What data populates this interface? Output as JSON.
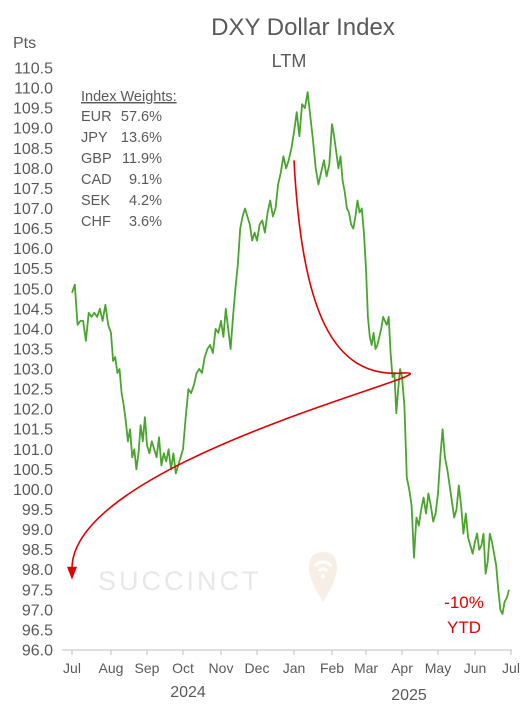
{
  "chart_data": {
    "type": "line",
    "title": "DXY Dollar Index",
    "subtitle": "LTM",
    "ylabel": "Pts",
    "xlabel": "",
    "ylim": [
      96.0,
      110.5
    ],
    "y_ticks": [
      "110.5",
      "110.0",
      "109.5",
      "109.0",
      "108.5",
      "108.0",
      "107.5",
      "107.0",
      "106.5",
      "106.0",
      "105.5",
      "105.0",
      "104.5",
      "104.0",
      "103.5",
      "103.0",
      "102.5",
      "102.0",
      "101.5",
      "101.0",
      "100.5",
      "100.0",
      "99.5",
      "99.0",
      "98.5",
      "98.0",
      "97.5",
      "97.0",
      "96.5",
      "96.0"
    ],
    "x_ticks": [
      "Jul",
      "Aug",
      "Sep",
      "Oct",
      "Nov",
      "Dec",
      "Jan",
      "Feb",
      "Mar",
      "Apr",
      "May",
      "Jun",
      "Jul"
    ],
    "year_labels": [
      "2024",
      "2025"
    ],
    "grid": false,
    "legend": "none",
    "index_weights": {
      "heading": "Index Weights:",
      "items": [
        {
          "currency": "EUR",
          "weight": "57.6%"
        },
        {
          "currency": "JPY",
          "weight": "13.6%"
        },
        {
          "currency": "GBP",
          "weight": "11.9%"
        },
        {
          "currency": "CAD",
          "weight": "9.1%"
        },
        {
          "currency": "SEK",
          "weight": "4.2%"
        },
        {
          "currency": "CHF",
          "weight": "3.6%"
        }
      ]
    },
    "annotation": {
      "line1": "-10%",
      "line2": "YTD",
      "color": "#e00000"
    },
    "trend_arrow": {
      "from": {
        "x": "Jan",
        "y": 108.2
      },
      "via": {
        "x": "Apr",
        "y": 102.9
      },
      "to": {
        "x": "Jul",
        "y": 97.8
      },
      "color": "#e00000"
    },
    "watermark": "SUCCINCT",
    "series": [
      {
        "color": "#4aa52e",
        "points": [
          [
            "Jul",
            104.9
          ],
          [
            "Jul",
            105.1
          ],
          [
            "Jul",
            104.1
          ],
          [
            "Jul",
            104.2
          ],
          [
            "Jul",
            104.2
          ],
          [
            "Jul",
            103.7
          ],
          [
            "Jul",
            104.4
          ],
          [
            "Jul",
            104.3
          ],
          [
            "Jul",
            104.4
          ],
          [
            "Jul",
            104.3
          ],
          [
            "Jul",
            104.5
          ],
          [
            "Jul",
            104.2
          ],
          [
            "Jul",
            104.6
          ],
          [
            "Jul",
            104.1
          ],
          [
            "Aug",
            103.9
          ],
          [
            "Aug",
            103.2
          ],
          [
            "Aug",
            103.3
          ],
          [
            "Aug",
            102.9
          ],
          [
            "Aug",
            103.0
          ],
          [
            "Aug",
            102.4
          ],
          [
            "Aug",
            102.1
          ],
          [
            "Aug",
            101.7
          ],
          [
            "Aug",
            101.2
          ],
          [
            "Aug",
            101.5
          ],
          [
            "Aug",
            100.8
          ],
          [
            "Aug",
            101.0
          ],
          [
            "Aug",
            100.5
          ],
          [
            "Aug",
            100.9
          ],
          [
            "Aug",
            101.6
          ],
          [
            "Aug",
            101.2
          ],
          [
            "Aug",
            101.8
          ],
          [
            "Sep",
            101.1
          ],
          [
            "Sep",
            100.9
          ],
          [
            "Sep",
            101.2
          ],
          [
            "Sep",
            101.0
          ],
          [
            "Sep",
            100.8
          ],
          [
            "Sep",
            101.3
          ],
          [
            "Sep",
            100.6
          ],
          [
            "Sep",
            100.9
          ],
          [
            "Sep",
            100.7
          ],
          [
            "Sep",
            101.0
          ],
          [
            "Sep",
            100.5
          ],
          [
            "Sep",
            100.9
          ],
          [
            "Sep",
            100.4
          ],
          [
            "Sep",
            100.6
          ],
          [
            "Sep",
            100.8
          ],
          [
            "Oct",
            101.0
          ],
          [
            "Oct",
            101.8
          ],
          [
            "Oct",
            102.5
          ],
          [
            "Oct",
            102.4
          ],
          [
            "Oct",
            102.6
          ],
          [
            "Oct",
            102.9
          ],
          [
            "Oct",
            103.0
          ],
          [
            "Oct",
            102.9
          ],
          [
            "Oct",
            103.3
          ],
          [
            "Oct",
            103.5
          ],
          [
            "Oct",
            103.6
          ],
          [
            "Oct",
            103.4
          ],
          [
            "Oct",
            104.0
          ],
          [
            "Oct",
            103.9
          ],
          [
            "Nov",
            104.2
          ],
          [
            "Nov",
            103.8
          ],
          [
            "Nov",
            104.5
          ],
          [
            "Nov",
            104.0
          ],
          [
            "Nov",
            103.5
          ],
          [
            "Nov",
            104.3
          ],
          [
            "Nov",
            105.0
          ],
          [
            "Nov",
            105.6
          ],
          [
            "Nov",
            106.5
          ],
          [
            "Nov",
            106.8
          ],
          [
            "Nov",
            107.0
          ],
          [
            "Nov",
            106.8
          ],
          [
            "Nov",
            106.6
          ],
          [
            "Nov",
            106.2
          ],
          [
            "Nov",
            106.4
          ],
          [
            "Dec",
            106.2
          ],
          [
            "Dec",
            106.6
          ],
          [
            "Dec",
            106.7
          ],
          [
            "Dec",
            106.4
          ],
          [
            "Dec",
            106.9
          ],
          [
            "Dec",
            107.2
          ],
          [
            "Dec",
            106.8
          ],
          [
            "Dec",
            107.0
          ],
          [
            "Dec",
            107.6
          ],
          [
            "Dec",
            107.9
          ],
          [
            "Dec",
            108.3
          ],
          [
            "Dec",
            108.0
          ],
          [
            "Dec",
            108.2
          ],
          [
            "Dec",
            108.5
          ],
          [
            "Jan",
            108.9
          ],
          [
            "Jan",
            109.4
          ],
          [
            "Jan",
            108.8
          ],
          [
            "Jan",
            109.6
          ],
          [
            "Jan",
            109.5
          ],
          [
            "Jan",
            109.9
          ],
          [
            "Jan",
            109.3
          ],
          [
            "Jan",
            108.7
          ],
          [
            "Jan",
            108.0
          ],
          [
            "Jan",
            107.6
          ],
          [
            "Jan",
            107.9
          ],
          [
            "Jan",
            108.2
          ],
          [
            "Jan",
            107.8
          ],
          [
            "Jan",
            108.1
          ],
          [
            "Feb",
            109.1
          ],
          [
            "Feb",
            108.8
          ],
          [
            "Feb",
            108.4
          ],
          [
            "Feb",
            108.0
          ],
          [
            "Feb",
            108.3
          ],
          [
            "Feb",
            107.7
          ],
          [
            "Feb",
            107.4
          ],
          [
            "Feb",
            107.0
          ],
          [
            "Feb",
            106.9
          ],
          [
            "Feb",
            106.6
          ],
          [
            "Feb",
            106.5
          ],
          [
            "Feb",
            106.8
          ],
          [
            "Feb",
            107.2
          ],
          [
            "Feb",
            106.9
          ],
          [
            "Feb",
            107.0
          ],
          [
            "Feb",
            106.4
          ],
          [
            "Mar",
            105.5
          ],
          [
            "Mar",
            104.3
          ],
          [
            "Mar",
            103.8
          ],
          [
            "Mar",
            103.6
          ],
          [
            "Mar",
            103.9
          ],
          [
            "Mar",
            103.5
          ],
          [
            "Mar",
            103.6
          ],
          [
            "Mar",
            103.8
          ],
          [
            "Mar",
            104.0
          ],
          [
            "Mar",
            104.3
          ],
          [
            "Mar",
            104.2
          ],
          [
            "Mar",
            104.1
          ],
          [
            "Mar",
            104.3
          ],
          [
            "Mar",
            103.4
          ],
          [
            "Mar",
            102.8
          ],
          [
            "Mar",
            102.9
          ],
          [
            "Mar",
            101.9
          ],
          [
            "Mar",
            102.5
          ],
          [
            "Mar",
            103.0
          ],
          [
            "Apr",
            102.8
          ],
          [
            "Apr",
            102.1
          ],
          [
            "Apr",
            100.3
          ],
          [
            "Apr",
            100.0
          ],
          [
            "Apr",
            99.6
          ],
          [
            "Apr",
            98.3
          ],
          [
            "Apr",
            99.3
          ],
          [
            "Apr",
            99.1
          ],
          [
            "Apr",
            99.5
          ],
          [
            "Apr",
            99.8
          ],
          [
            "Apr",
            99.4
          ],
          [
            "Apr",
            99.9
          ],
          [
            "Apr",
            99.6
          ],
          [
            "Apr",
            99.2
          ],
          [
            "Apr",
            99.4
          ],
          [
            "May",
            99.9
          ],
          [
            "May",
            100.8
          ],
          [
            "May",
            101.5
          ],
          [
            "May",
            100.8
          ],
          [
            "May",
            100.5
          ],
          [
            "May",
            100.1
          ],
          [
            "May",
            99.7
          ],
          [
            "May",
            99.3
          ],
          [
            "May",
            99.5
          ],
          [
            "May",
            100.1
          ],
          [
            "May",
            99.6
          ],
          [
            "May",
            98.9
          ],
          [
            "May",
            99.4
          ],
          [
            "May",
            98.8
          ],
          [
            "May",
            98.6
          ],
          [
            "May",
            98.4
          ],
          [
            "Jun",
            98.7
          ],
          [
            "Jun",
            98.9
          ],
          [
            "Jun",
            98.5
          ],
          [
            "Jun",
            98.6
          ],
          [
            "Jun",
            98.9
          ],
          [
            "Jun",
            97.9
          ],
          [
            "Jun",
            98.2
          ],
          [
            "Jun",
            98.9
          ],
          [
            "Jun",
            98.7
          ],
          [
            "Jun",
            98.4
          ],
          [
            "Jun",
            98.1
          ],
          [
            "Jun",
            97.5
          ],
          [
            "Jun",
            97.0
          ],
          [
            "Jun",
            96.9
          ],
          [
            "Jun",
            97.2
          ],
          [
            "Jun",
            97.3
          ],
          [
            "Jun",
            97.5
          ]
        ]
      }
    ]
  }
}
